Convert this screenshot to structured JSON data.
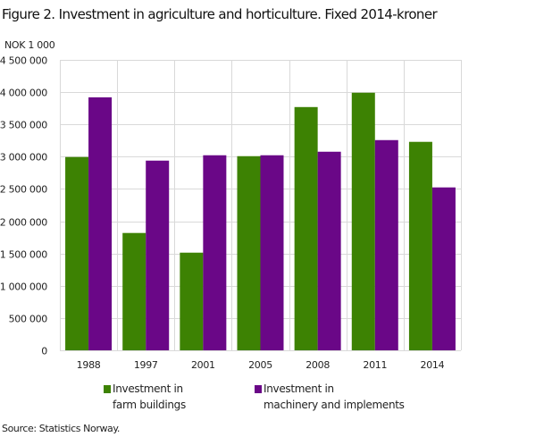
{
  "chart_data": {
    "type": "bar",
    "title": "Figure 2. Investment in agriculture and horticulture. Fixed 2014-kroner",
    "ylabel": "NOK 1 000",
    "xlabel": "",
    "categories": [
      "1988",
      "1997",
      "2001",
      "2005",
      "2008",
      "2011",
      "2014"
    ],
    "series": [
      {
        "name": "Investment in farm buildings",
        "legend_lines": [
          "Investment in",
          "farm buildings"
        ],
        "color": "#3d8203",
        "values": [
          2995000,
          1818000,
          1513000,
          3008000,
          3769000,
          3991000,
          3230000
        ]
      },
      {
        "name": "Investment in machinery and implements",
        "legend_lines": [
          "Investment in",
          "machinery and implements"
        ],
        "color": "#6a0787",
        "values": [
          3920000,
          2939000,
          3022000,
          3022000,
          3077000,
          3257000,
          2524000
        ]
      }
    ],
    "ylim": [
      0,
      4500000
    ],
    "yticks": [
      0,
      500000,
      1000000,
      1500000,
      2000000,
      2500000,
      3000000,
      3500000,
      4000000,
      4500000
    ],
    "ytick_labels": [
      "0",
      "500 000",
      "1 000 000",
      "1 500 000",
      "2 000 000",
      "2 500 000",
      "3 000 000",
      "3 500 000",
      "4 000 000",
      "4 500 000"
    ],
    "grid": true,
    "legend_position": "bottom",
    "source": "Source: Statistics Norway."
  }
}
